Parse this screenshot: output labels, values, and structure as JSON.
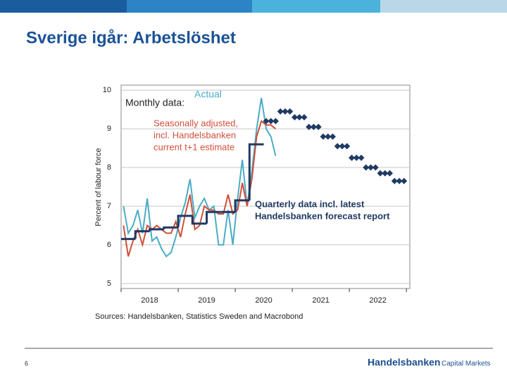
{
  "slide": {
    "title": "Sverige igår: Arbetslöshet",
    "page_number": "6",
    "brand": "Handelsbanken",
    "brand_suffix": "Capital Markets"
  },
  "chart_data": {
    "type": "line",
    "y_label": "Percent of labour force",
    "source": "Sources: Handelsbanken, Statistics Sweden and Macrobond",
    "annotation": "Monthly data:",
    "xlim": [
      2018,
      2023.06
    ],
    "ylim": [
      4.87,
      10.13
    ],
    "xticks": [
      {
        "value": 2018.5,
        "label": "2018"
      },
      {
        "value": 2019.5,
        "label": "2019"
      },
      {
        "value": 2020.5,
        "label": "2020"
      },
      {
        "value": 2021.5,
        "label": "2021"
      },
      {
        "value": 2022.5,
        "label": "2022"
      }
    ],
    "xminorticks": [
      2018,
      2019,
      2020,
      2021,
      2022,
      2023
    ],
    "yticks": [
      5,
      6,
      7,
      8,
      9,
      10
    ],
    "grid": true,
    "series": [
      {
        "name": [
          "Actual"
        ],
        "color": "#4bacc6",
        "x": [
          2018.042,
          2018.125,
          2018.208,
          2018.292,
          2018.375,
          2018.458,
          2018.542,
          2018.625,
          2018.708,
          2018.792,
          2018.875,
          2018.958,
          2019.042,
          2019.125,
          2019.208,
          2019.292,
          2019.375,
          2019.458,
          2019.542,
          2019.625,
          2019.708,
          2019.792,
          2019.875,
          2019.958,
          2020.042,
          2020.125,
          2020.208,
          2020.292,
          2020.375,
          2020.458,
          2020.542,
          2020.625,
          2020.708
        ],
        "values": [
          7.0,
          6.3,
          6.5,
          6.9,
          6.3,
          7.2,
          6.1,
          6.2,
          5.9,
          5.7,
          5.8,
          6.2,
          6.7,
          7.1,
          7.7,
          6.7,
          7.0,
          7.2,
          6.9,
          7.0,
          6.0,
          6.0,
          6.9,
          6.0,
          7.2,
          8.2,
          7.0,
          7.9,
          9.0,
          9.8,
          9.0,
          8.8,
          8.3
        ]
      },
      {
        "name": [
          "Seasonally adjusted,",
          "incl. Handelsbanken",
          "current t+1 estimate"
        ],
        "color": "#d0503a",
        "x": [
          2018.042,
          2018.125,
          2018.208,
          2018.292,
          2018.375,
          2018.458,
          2018.542,
          2018.625,
          2018.708,
          2018.792,
          2018.875,
          2018.958,
          2019.042,
          2019.125,
          2019.208,
          2019.292,
          2019.375,
          2019.458,
          2019.542,
          2019.625,
          2019.708,
          2019.792,
          2019.875,
          2019.958,
          2020.042,
          2020.125,
          2020.208,
          2020.292,
          2020.375,
          2020.458,
          2020.542,
          2020.625,
          2020.708
        ],
        "values": [
          6.5,
          5.7,
          6.1,
          6.4,
          6.0,
          6.5,
          6.4,
          6.5,
          6.4,
          6.3,
          6.3,
          6.6,
          6.2,
          6.8,
          7.3,
          6.4,
          6.5,
          7.0,
          6.9,
          6.9,
          6.8,
          6.8,
          7.3,
          6.8,
          6.9,
          7.6,
          7.0,
          7.7,
          8.8,
          9.2,
          9.1,
          9.1,
          9.0
        ]
      },
      {
        "name": [
          "Quarterly data incl. latest",
          "Handelsbanken forecast report"
        ],
        "color": "#1f3a63",
        "x": [
          2018,
          2018.25,
          2018.5,
          2018.75,
          2019,
          2019.25,
          2019.5,
          2019.75,
          2020,
          2020.25,
          2020.5,
          2020.75,
          2021,
          2021.25,
          2021.5,
          2021.75,
          2022,
          2022.25,
          2022.5,
          2022.75
        ],
        "values": [
          6.15,
          6.35,
          6.4,
          6.45,
          6.75,
          6.55,
          6.85,
          6.85,
          7.15,
          8.6,
          null,
          null,
          null,
          null,
          null,
          null,
          null,
          null,
          null,
          null
        ],
        "forecast_values": [
          null,
          null,
          null,
          null,
          null,
          null,
          null,
          null,
          null,
          null,
          9.2,
          9.45,
          9.3,
          9.05,
          8.8,
          8.55,
          8.25,
          8.0,
          7.85,
          7.65
        ]
      }
    ]
  }
}
